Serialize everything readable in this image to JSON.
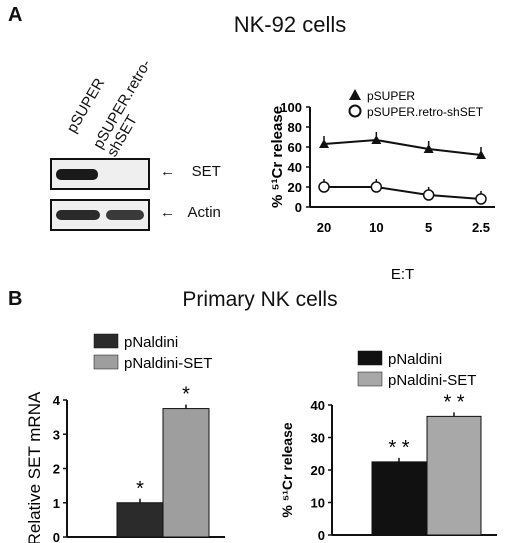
{
  "panel_a": {
    "letter": "A",
    "title": "NK-92  cells",
    "blot": {
      "lanes": [
        "pSUPER",
        "pSUPER.retro-\nshSET"
      ],
      "lane_1": "pSUPER",
      "lane_2_line1": "pSUPER.retro-",
      "lane_2_line2": "shSET",
      "row_1_label": "SET",
      "row_2_label": "Actin",
      "arrow": "←"
    }
  },
  "panel_b": {
    "letter": "B",
    "title": "Primary NK cells"
  },
  "chart_data": [
    {
      "type": "line",
      "panel": "A",
      "xlabel": "E:T",
      "ylabel": "% ⁵¹Cr release",
      "categories": [
        "20",
        "10",
        "5",
        "2.5"
      ],
      "ylim": [
        0,
        100
      ],
      "yticks": [
        0,
        20,
        40,
        60,
        80,
        100
      ],
      "legend_position": "top-right",
      "series": [
        {
          "name": "pSUPER",
          "marker": "filled-triangle",
          "values": [
            63,
            67,
            58,
            52
          ]
        },
        {
          "name": "pSUPER.retro-shSET",
          "marker": "open-circle",
          "values": [
            20,
            20,
            12,
            8
          ]
        }
      ]
    },
    {
      "type": "bar",
      "panel": "B-left",
      "ylabel": "Relative SET mRNA",
      "ylim": [
        0,
        4
      ],
      "yticks": [
        0,
        1,
        2,
        3,
        4
      ],
      "legend_position": "top",
      "series": [
        {
          "name": "pNaldini",
          "color": "#2b2b2b",
          "values": [
            1.0
          ],
          "annotation": "*"
        },
        {
          "name": "pNaldini-SET",
          "color": "#9e9e9e",
          "values": [
            3.75
          ],
          "annotation": "*"
        }
      ]
    },
    {
      "type": "bar",
      "panel": "B-right",
      "ylabel": "% ⁵¹Cr release",
      "ylim": [
        0,
        40
      ],
      "yticks": [
        0,
        10,
        20,
        30,
        40
      ],
      "legend_position": "top",
      "series": [
        {
          "name": "pNaldini",
          "color": "#111111",
          "values": [
            22.5
          ],
          "annotation": "* *"
        },
        {
          "name": "pNaldini-SET",
          "color": "#a8a8a8",
          "values": [
            36.5
          ],
          "annotation": "* *"
        }
      ]
    }
  ]
}
